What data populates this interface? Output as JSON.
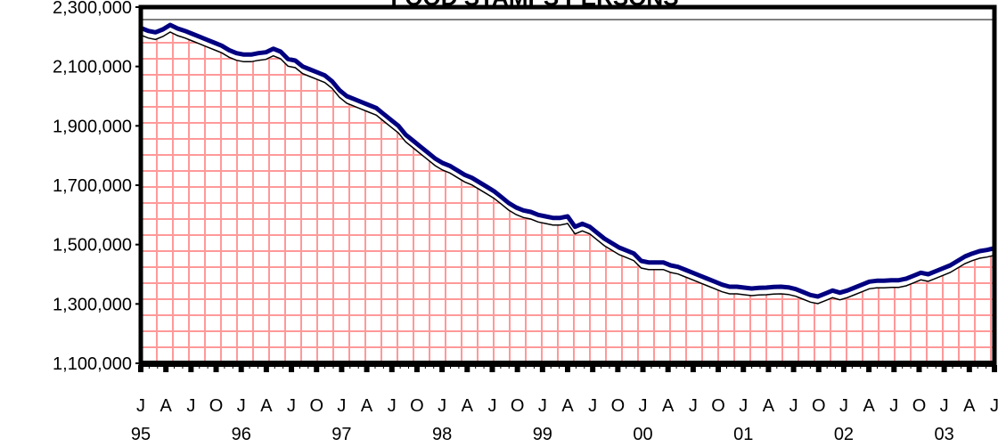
{
  "chart_data": {
    "type": "area",
    "title": "FOOD STAMPS PERSONS",
    "xlabel": "",
    "ylabel": "",
    "ylim": [
      1100000,
      2300000
    ],
    "yticks": [
      1100000,
      1300000,
      1500000,
      1700000,
      1900000,
      2100000,
      2300000
    ],
    "ytick_labels": [
      "1,100,000",
      "1,300,000",
      "1,500,000",
      "1,700,000",
      "1,900,000",
      "2,100,000",
      "2,300,000"
    ],
    "xtick_labels": [
      "J",
      "A",
      "J",
      "O",
      "J",
      "A",
      "J",
      "O",
      "J",
      "A",
      "J",
      "O",
      "J",
      "A",
      "J",
      "O",
      "J",
      "A",
      "J",
      "O",
      "J",
      "A",
      "J",
      "O",
      "J",
      "A",
      "J",
      "O",
      "J",
      "A",
      "J",
      "O",
      "J",
      "A",
      "J"
    ],
    "year_labels": [
      "95",
      "96",
      "97",
      "98",
      "99",
      "00",
      "01",
      "02",
      "03"
    ],
    "x_start": "1995-01",
    "x_end": "2003-07",
    "grid": true,
    "series": [
      {
        "values": [
          2230000,
          2220000,
          2215000,
          2225000,
          2240000,
          2228000,
          2220000,
          2210000,
          2200000,
          2190000,
          2180000,
          2170000,
          2155000,
          2145000,
          2140000,
          2140000,
          2145000,
          2148000,
          2160000,
          2150000,
          2125000,
          2120000,
          2100000,
          2090000,
          2080000,
          2070000,
          2050000,
          2020000,
          2000000,
          1990000,
          1980000,
          1970000,
          1960000,
          1940000,
          1920000,
          1900000,
          1870000,
          1850000,
          1830000,
          1810000,
          1790000,
          1775000,
          1765000,
          1750000,
          1735000,
          1725000,
          1710000,
          1695000,
          1680000,
          1660000,
          1640000,
          1625000,
          1615000,
          1610000,
          1600000,
          1595000,
          1590000,
          1590000,
          1595000,
          1560000,
          1570000,
          1560000,
          1540000,
          1520000,
          1505000,
          1490000,
          1480000,
          1470000,
          1445000,
          1440000,
          1440000,
          1440000,
          1430000,
          1425000,
          1415000,
          1405000,
          1395000,
          1385000,
          1375000,
          1365000,
          1358000,
          1358000,
          1355000,
          1352000,
          1354000,
          1355000,
          1357000,
          1358000,
          1356000,
          1350000,
          1340000,
          1330000,
          1325000,
          1335000,
          1345000,
          1338000,
          1345000,
          1355000,
          1365000,
          1375000,
          1378000,
          1378000,
          1380000,
          1380000,
          1385000,
          1395000,
          1405000,
          1400000,
          1410000,
          1420000,
          1430000,
          1445000,
          1460000,
          1470000,
          1478000,
          1482000,
          1488000
        ]
      }
    ],
    "colors": {
      "line": "#000080",
      "fill_grid": "#ff9999",
      "frame": "#000000"
    }
  }
}
